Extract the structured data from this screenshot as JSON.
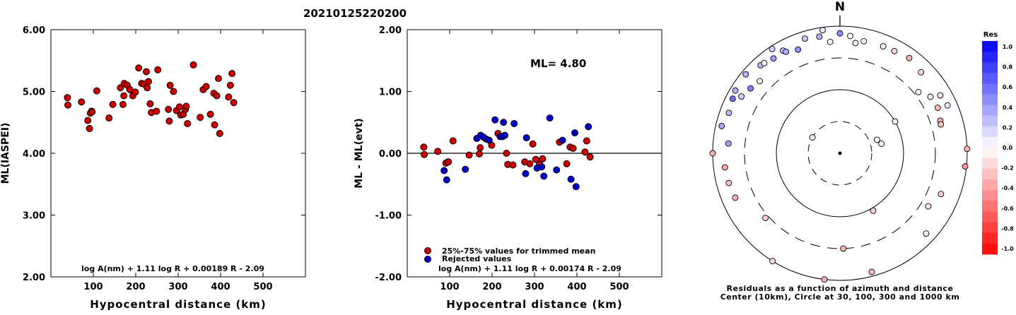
{
  "event_id": "20210125220200",
  "chart_data": [
    {
      "type": "scatter",
      "xlabel": "Hypocentral distance (km)",
      "ylabel": "ML(IASPEI)",
      "xlim": [
        0,
        600
      ],
      "ylim": [
        2.0,
        6.0
      ],
      "xticks": [
        "100",
        "200",
        "300",
        "400",
        "500"
      ],
      "yticks": [
        "2.00",
        "3.00",
        "4.00",
        "5.00",
        "6.00"
      ],
      "formula": "log A(nm) + 1.11 log R + 0.00189 R - 2.09",
      "marker_color": "#cc0000",
      "points": [
        [
          39,
          4.9
        ],
        [
          40,
          4.78
        ],
        [
          72,
          4.83
        ],
        [
          87,
          4.53
        ],
        [
          91,
          4.4
        ],
        [
          93,
          4.65
        ],
        [
          96,
          4.68
        ],
        [
          97,
          4.67
        ],
        [
          108,
          5.01
        ],
        [
          137,
          4.57
        ],
        [
          146,
          4.79
        ],
        [
          164,
          5.06
        ],
        [
          170,
          4.79
        ],
        [
          172,
          4.93
        ],
        [
          173,
          5.13
        ],
        [
          180,
          5.1
        ],
        [
          186,
          5.03
        ],
        [
          193,
          4.93
        ],
        [
          199,
          4.99
        ],
        [
          207,
          5.38
        ],
        [
          214,
          5.13
        ],
        [
          219,
          5.12
        ],
        [
          225,
          5.32
        ],
        [
          227,
          5.06
        ],
        [
          230,
          5.16
        ],
        [
          234,
          4.8
        ],
        [
          237,
          4.66
        ],
        [
          249,
          4.68
        ],
        [
          252,
          5.35
        ],
        [
          277,
          4.71
        ],
        [
          279,
          4.52
        ],
        [
          281,
          5.1
        ],
        [
          289,
          5.0
        ],
        [
          296,
          4.69
        ],
        [
          303,
          4.75
        ],
        [
          306,
          4.62
        ],
        [
          312,
          4.63
        ],
        [
          317,
          4.71
        ],
        [
          319,
          4.76
        ],
        [
          322,
          4.48
        ],
        [
          336,
          5.43
        ],
        [
          352,
          4.58
        ],
        [
          359,
          5.03
        ],
        [
          366,
          5.08
        ],
        [
          376,
          4.63
        ],
        [
          384,
          4.97
        ],
        [
          386,
          4.46
        ],
        [
          391,
          4.93
        ],
        [
          395,
          5.21
        ],
        [
          398,
          4.32
        ],
        [
          419,
          4.91
        ],
        [
          423,
          5.1
        ],
        [
          427,
          5.29
        ],
        [
          431,
          4.82
        ]
      ]
    },
    {
      "type": "scatter",
      "xlabel": "Hypocentral distance (km)",
      "ylabel": "ML - ML(evt)",
      "xlim": [
        0,
        600
      ],
      "ylim": [
        -2.0,
        2.0
      ],
      "xticks": [
        "100",
        "200",
        "300",
        "400",
        "500"
      ],
      "yticks": [
        "-2.00",
        "-1.00",
        "0.00",
        "1.00",
        "2.00"
      ],
      "annotation": "ML= 4.80",
      "formula": "log A(nm) + 1.11 log R + 0.00174 R - 2.09",
      "legend": [
        {
          "label": "25%-75% values for trimmed mean",
          "color": "#cc0000"
        },
        {
          "label": "Rejected values",
          "color": "#0000cc"
        }
      ],
      "series": [
        {
          "color": "#cc0000",
          "points": [
            [
              39,
              0.1
            ],
            [
              40,
              -0.02
            ],
            [
              72,
              0.03
            ],
            [
              91,
              -0.16
            ],
            [
              96,
              -0.14
            ],
            [
              97,
              -0.14
            ],
            [
              108,
              0.2
            ],
            [
              146,
              -0.03
            ],
            [
              172,
              0.09
            ],
            [
              170,
              -0.01
            ],
            [
              186,
              0.23
            ],
            [
              199,
              0.13
            ],
            [
              214,
              0.32
            ],
            [
              234,
              0.0
            ],
            [
              237,
              -0.18
            ],
            [
              249,
              -0.19
            ],
            [
              277,
              -0.14
            ],
            [
              289,
              -0.17
            ],
            [
              296,
              0.15
            ],
            [
              303,
              -0.1
            ],
            [
              312,
              -0.18
            ],
            [
              319,
              -0.09
            ],
            [
              359,
              0.18
            ],
            [
              376,
              -0.17
            ],
            [
              384,
              0.1
            ],
            [
              391,
              0.08
            ],
            [
              419,
              0.02
            ],
            [
              423,
              0.2
            ],
            [
              431,
              -0.06
            ]
          ]
        },
        {
          "color": "#0000cc",
          "points": [
            [
              87,
              -0.28
            ],
            [
              93,
              -0.43
            ],
            [
              137,
              -0.26
            ],
            [
              164,
              0.24
            ],
            [
              173,
              0.29
            ],
            [
              180,
              0.26
            ],
            [
              193,
              0.21
            ],
            [
              207,
              0.54
            ],
            [
              219,
              0.27
            ],
            [
              225,
              0.27
            ],
            [
              227,
              0.5
            ],
            [
              230,
              0.29
            ],
            [
              252,
              0.48
            ],
            [
              279,
              -0.33
            ],
            [
              281,
              0.25
            ],
            [
              306,
              -0.24
            ],
            [
              317,
              -0.22
            ],
            [
              322,
              -0.37
            ],
            [
              336,
              0.57
            ],
            [
              352,
              -0.27
            ],
            [
              366,
              0.21
            ],
            [
              386,
              -0.42
            ],
            [
              395,
              0.33
            ],
            [
              398,
              -0.54
            ],
            [
              427,
              0.43
            ]
          ]
        }
      ]
    },
    {
      "type": "polar-scatter",
      "north_label": "N",
      "caption_line1": "Residuals as a function of azimuth and distance",
      "caption_line2": "Center (10km), Circle at 30, 100, 300 and 1000 km",
      "colorbar_title": "Res",
      "colorbar_ticks": [
        "1.0",
        "0.8",
        "0.6",
        "0.4",
        "0.2",
        "0.0",
        "-0.2",
        "-0.4",
        "-0.6",
        "-0.8",
        "-1.0"
      ],
      "points": [
        [
          5,
          -0.02
        ],
        [
          12,
          0.02
        ],
        [
          22,
          -0.06
        ],
        [
          28,
          -0.18
        ],
        [
          36,
          -0.3
        ],
        [
          45,
          -0.16
        ],
        [
          52,
          0.03
        ],
        [
          58,
          0.05
        ],
        [
          65,
          -0.28
        ],
        [
          72,
          -0.32
        ],
        [
          74,
          -0.25
        ],
        [
          88,
          -0.3
        ],
        [
          96,
          -0.4
        ],
        [
          112,
          -0.18
        ],
        [
          121,
          -0.12
        ],
        [
          133,
          -0.08
        ],
        [
          150,
          -0.18
        ],
        [
          165,
          -0.28
        ],
        [
          178,
          -0.3
        ],
        [
          187,
          -0.3
        ],
        [
          212,
          -0.17
        ],
        [
          229,
          -0.18
        ],
        [
          247,
          -0.29
        ],
        [
          255,
          -0.24
        ],
        [
          263,
          -0.34
        ],
        [
          270,
          -0.3
        ],
        [
          275,
          0.35
        ],
        [
          283,
          0.34
        ],
        [
          290,
          0.27
        ],
        [
          297,
          0.55
        ],
        [
          300,
          0.2
        ],
        [
          310,
          0.3
        ],
        [
          318,
          0.28
        ],
        [
          325,
          0.37
        ],
        [
          331,
          0.24
        ],
        [
          338,
          0.43
        ],
        [
          343,
          0.22
        ],
        [
          350,
          0.3
        ],
        [
          355,
          -0.04
        ],
        [
          0,
          0.45
        ],
        [
          352,
          0.1
        ],
        [
          301,
          0.29
        ],
        [
          306,
          0.5
        ],
        [
          320,
          0.05
        ],
        [
          327,
          0.19
        ],
        [
          332,
          0.33
        ],
        [
          70,
          0.03
        ],
        [
          77,
          -0.04
        ],
        [
          60,
          -0.06
        ],
        [
          312,
          -0.04
        ],
        [
          8,
          0.05
        ],
        [
          60,
          -0.1
        ],
        [
          66,
          0.1
        ],
        [
          300,
          -0.05
        ]
      ],
      "point_distances_km": [
        700,
        620,
        640,
        650,
        700,
        620,
        350,
        460,
        480,
        440,
        430,
        1000,
        950,
        500,
        400,
        700,
        110,
        850,
        300,
        1000,
        1000,
        340,
        600,
        630,
        650,
        1000,
        560,
        800,
        710,
        770,
        600,
        850,
        720,
        650,
        690,
        560,
        760,
        720,
        560,
        760,
        900,
        820,
        530,
        700,
        900,
        630,
        40,
        45,
        100,
        480,
        550,
        650,
        700,
        30
      ]
    }
  ]
}
